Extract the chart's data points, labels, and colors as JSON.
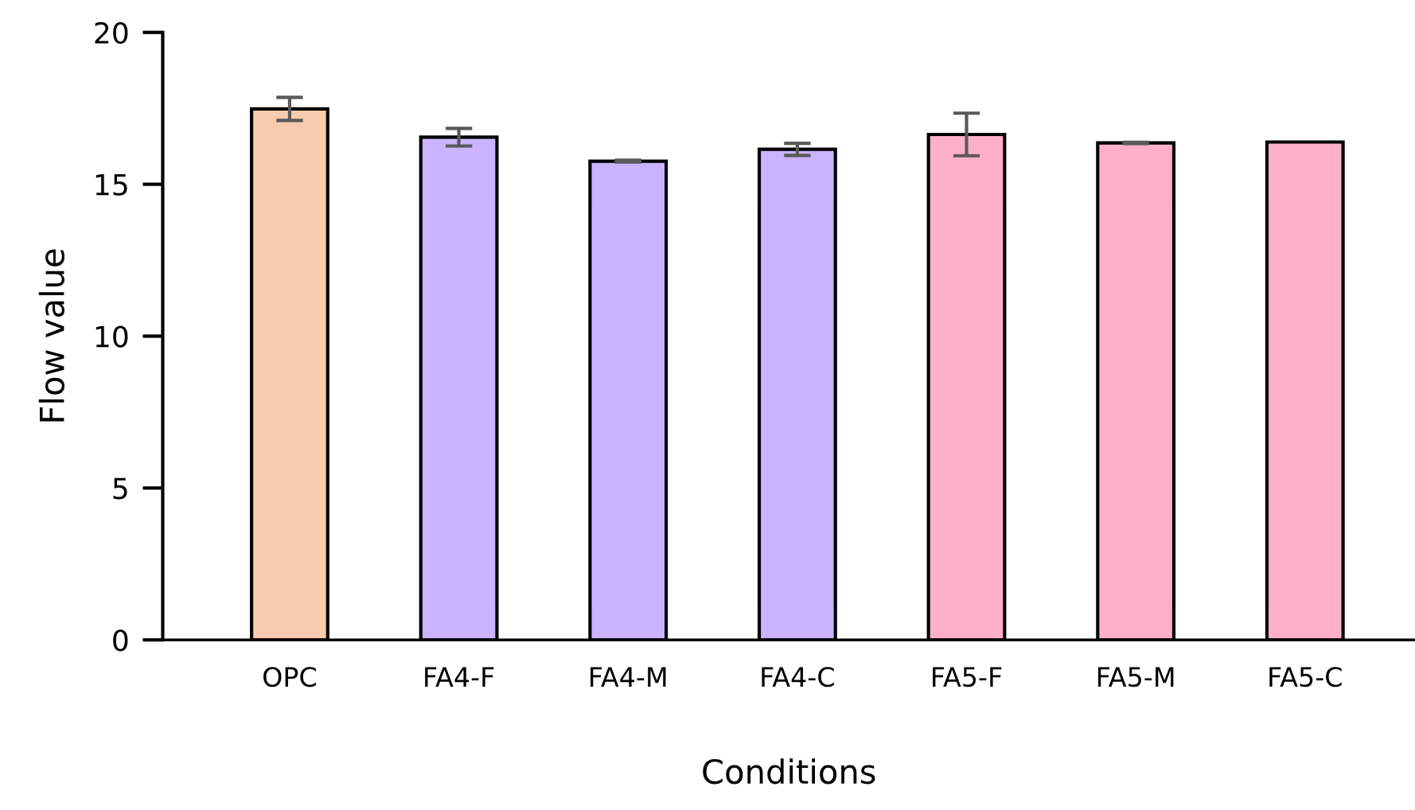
{
  "chart_data": {
    "type": "bar",
    "xlabel": "Conditions",
    "ylabel": "Flow value",
    "categories": [
      "OPC",
      "FA4-F",
      "FA4-M",
      "FA4-C",
      "FA5-F",
      "FA5-M",
      "FA5-C"
    ],
    "values": [
      17.48,
      16.55,
      15.76,
      16.15,
      16.64,
      16.36,
      16.39
    ],
    "errors": [
      0.38,
      0.29,
      0.03,
      0.2,
      0.7,
      0.02,
      null
    ],
    "colors": [
      "#f7cbad",
      "#cbb4ff",
      "#cbb4ff",
      "#cbb4ff",
      "#ffafca",
      "#ffafca",
      "#ffafca"
    ],
    "ylim": [
      0,
      20
    ],
    "yticks": [
      0,
      5,
      10,
      15,
      20
    ],
    "grid": false,
    "legend": false
  }
}
